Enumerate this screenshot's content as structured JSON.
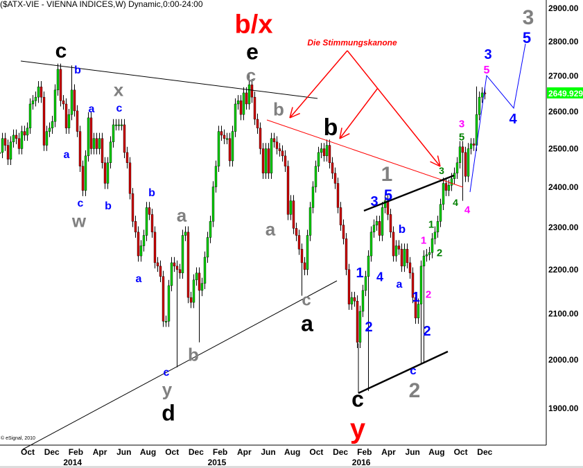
{
  "title": "($ATX-VIE - VIENNA INDICES,W) Dynamic,0:00-24:00",
  "copyright": "© eSignal, 2010",
  "colors": {
    "up": "#00cc00",
    "down": "#cc0000",
    "wick": "#000000",
    "last_price_bg": "#00ff00",
    "annotation_red": "#ff0000",
    "wave_blue": "#0000ff",
    "wave_grey": "#808080",
    "wave_pink": "#ff00ff",
    "wave_green": "#008000"
  },
  "chart_data": {
    "type": "candlestick",
    "interval": "W",
    "yscale": "log",
    "ylim": [
      1830,
      2950
    ],
    "y_ticks": [
      "2900.00",
      "2800.00",
      "2700.00",
      "2600.00",
      "2500.00",
      "2400.00",
      "2300.00",
      "2200.00",
      "2100.00",
      "2000.00",
      "1900.00"
    ],
    "last_price": "2649.929",
    "x_ticks": [
      "Oct",
      "Dec",
      "Feb",
      "Apr",
      "Jun",
      "Aug",
      "Oct",
      "Dec",
      "Feb",
      "Apr",
      "Jun",
      "Aug",
      "Oct",
      "Dec",
      "Feb",
      "Apr",
      "Jun",
      "Aug",
      "Oct",
      "Dec"
    ],
    "x_years": [
      {
        "label": "2014",
        "tick": 2
      },
      {
        "label": "2015",
        "tick": 8
      },
      {
        "label": "2016",
        "tick": 14
      }
    ],
    "grid": false,
    "dates": [
      "2013-07-22",
      "2013-07-29",
      "2013-08-05",
      "2013-08-12",
      "2013-08-19",
      "2013-08-26",
      "2013-09-02",
      "2013-09-09",
      "2013-09-16",
      "2013-09-23",
      "2013-09-30",
      "2013-10-07",
      "2013-10-14",
      "2013-10-21",
      "2013-10-28",
      "2013-11-04",
      "2013-11-11",
      "2013-11-18",
      "2013-11-25",
      "2013-12-02",
      "2013-12-09",
      "2013-12-16",
      "2013-12-23",
      "2013-12-30",
      "2014-01-06",
      "2014-01-13",
      "2014-01-20",
      "2014-01-27",
      "2014-02-03",
      "2014-02-10",
      "2014-02-17",
      "2014-02-24",
      "2014-03-03",
      "2014-03-10",
      "2014-03-17",
      "2014-03-24",
      "2014-03-31",
      "2014-04-07",
      "2014-04-14",
      "2014-04-21",
      "2014-04-28",
      "2014-05-05",
      "2014-05-12",
      "2014-05-19",
      "2014-05-26",
      "2014-06-02",
      "2014-06-09",
      "2014-06-16",
      "2014-06-23",
      "2014-06-30",
      "2014-07-07",
      "2014-07-14",
      "2014-07-21",
      "2014-07-28",
      "2014-08-04",
      "2014-08-11",
      "2014-08-18",
      "2014-08-25",
      "2014-09-01",
      "2014-09-08",
      "2014-09-15",
      "2014-09-22",
      "2014-09-29",
      "2014-10-06",
      "2014-10-13",
      "2014-10-20",
      "2014-10-27",
      "2014-11-03",
      "2014-11-10",
      "2014-11-17",
      "2014-11-24",
      "2014-12-01",
      "2014-12-08",
      "2014-12-15",
      "2014-12-22",
      "2014-12-29",
      "2015-01-05",
      "2015-01-12",
      "2015-01-19",
      "2015-01-26",
      "2015-02-02",
      "2015-02-09",
      "2015-02-16",
      "2015-02-23",
      "2015-03-02",
      "2015-03-09",
      "2015-03-16",
      "2015-03-23",
      "2015-03-30",
      "2015-04-06",
      "2015-04-13",
      "2015-04-20",
      "2015-04-27",
      "2015-05-04",
      "2015-05-11",
      "2015-05-18",
      "2015-05-25",
      "2015-06-01",
      "2015-06-08",
      "2015-06-15",
      "2015-06-22",
      "2015-06-29",
      "2015-07-06",
      "2015-07-13",
      "2015-07-20",
      "2015-07-27",
      "2015-08-03",
      "2015-08-10",
      "2015-08-17",
      "2015-08-24",
      "2015-08-31",
      "2015-09-07",
      "2015-09-14",
      "2015-09-21",
      "2015-09-28",
      "2015-10-05",
      "2015-10-12",
      "2015-10-19",
      "2015-10-26",
      "2015-11-02",
      "2015-11-09",
      "2015-11-16",
      "2015-11-23",
      "2015-11-30",
      "2015-12-07",
      "2015-12-14",
      "2015-12-21",
      "2015-12-28",
      "2016-01-04",
      "2016-01-11",
      "2016-01-18",
      "2016-01-25",
      "2016-02-01",
      "2016-02-08",
      "2016-02-15",
      "2016-02-22",
      "2016-02-29",
      "2016-03-07",
      "2016-03-14",
      "2016-03-21",
      "2016-03-28",
      "2016-04-04",
      "2016-04-11",
      "2016-04-18",
      "2016-04-25",
      "2016-05-02",
      "2016-05-09",
      "2016-05-16",
      "2016-05-23",
      "2016-05-30",
      "2016-06-06",
      "2016-06-13",
      "2016-06-20",
      "2016-06-27",
      "2016-07-04",
      "2016-07-11",
      "2016-07-18",
      "2016-07-25",
      "2016-08-01",
      "2016-08-08",
      "2016-08-15",
      "2016-08-22",
      "2016-08-29",
      "2016-09-05",
      "2016-09-12",
      "2016-09-19",
      "2016-09-26",
      "2016-10-03",
      "2016-10-10",
      "2016-10-17",
      "2016-10-24",
      "2016-10-31",
      "2016-11-07",
      "2016-11-14",
      "2016-11-21",
      "2016-11-28"
    ],
    "close": [
      2490,
      2527,
      2509,
      2472,
      2518,
      2536,
      2527,
      2500,
      2546,
      2536,
      2555,
      2621,
      2630,
      2640,
      2669,
      2640,
      2509,
      2546,
      2555,
      2573,
      2660,
      2719,
      2630,
      2621,
      2555,
      2592,
      2660,
      2602,
      2546,
      2454,
      2392,
      2481,
      2583,
      2500,
      2527,
      2500,
      2527,
      2463,
      2410,
      2463,
      2518,
      2564,
      2564,
      2564,
      2564,
      2490,
      2463,
      2384,
      2315,
      2289,
      2232,
      2256,
      2281,
      2349,
      2332,
      2289,
      2216,
      2208,
      2184,
      2083,
      2083,
      2163,
      2216,
      2208,
      2200,
      2192,
      2281,
      2289,
      2136,
      2125,
      2176,
      2192,
      2152,
      2168,
      2229,
      2276,
      2315,
      2401,
      2454,
      2546,
      2536,
      2527,
      2527,
      2468,
      2546,
      2621,
      2630,
      2592,
      2652,
      2621,
      2675,
      2640,
      2579,
      2555,
      2500,
      2436,
      2500,
      2436,
      2527,
      2518,
      2500,
      2494,
      2481,
      2454,
      2332,
      2366,
      2298,
      2281,
      2248,
      2216,
      2200,
      2281,
      2349,
      2401,
      2454,
      2490,
      2500,
      2481,
      2509,
      2463,
      2436,
      2410,
      2349,
      2306,
      2273,
      2200,
      2121,
      2136,
      2128,
      2037,
      2105,
      2152,
      2184,
      2232,
      2289,
      2306,
      2315,
      2281,
      2349,
      2366,
      2332,
      2289,
      2232,
      2256,
      2248,
      2208,
      2248,
      2216,
      2192,
      2136,
      2090,
      2121,
      2208,
      2232,
      2235,
      2240,
      2273,
      2289,
      2315,
      2357,
      2410,
      2392,
      2405,
      2422,
      2436,
      2463,
      2505,
      2490,
      2428,
      2500,
      2513,
      2509,
      2592,
      2640,
      2652,
      2649.929
    ],
    "extremes": [
      {
        "date": "2014-01-20",
        "high": 2730
      },
      {
        "date": "2014-10-13",
        "low": 1984
      },
      {
        "date": "2014-12-08",
        "low": 2037
      },
      {
        "date": "2015-04-13",
        "high": 2705
      },
      {
        "date": "2015-08-24",
        "low": 2140
      },
      {
        "date": "2016-02-08",
        "low": 1935
      },
      {
        "date": "2016-06-20",
        "low": 1992
      },
      {
        "date": "2016-06-27",
        "low": 1995
      },
      {
        "date": "2016-10-03",
        "low": 2366
      },
      {
        "date": "2016-11-07",
        "high": 2670
      }
    ]
  },
  "annotations": [
    {
      "text": "c",
      "color": "#000000"
    },
    {
      "text": "b",
      "color": "#0000ff"
    },
    {
      "text": "a",
      "color": "#0000ff"
    },
    {
      "text": "a",
      "color": "#0000ff"
    },
    {
      "text": "x",
      "color": "#808080"
    },
    {
      "text": "c",
      "color": "#0000ff"
    },
    {
      "text": "c",
      "color": "#0000ff"
    },
    {
      "text": "w",
      "color": "#808080"
    },
    {
      "text": "b",
      "color": "#0000ff"
    },
    {
      "text": "b",
      "color": "#0000ff"
    },
    {
      "text": "a",
      "color": "#0000ff"
    },
    {
      "text": "a",
      "color": "#808080"
    },
    {
      "text": "c",
      "color": "#0000ff"
    },
    {
      "text": "y",
      "color": "#808080"
    },
    {
      "text": "d",
      "color": "#000000"
    },
    {
      "text": "b",
      "color": "#808080"
    },
    {
      "text": "b/x",
      "color": "#ff0000"
    },
    {
      "text": "e",
      "color": "#000000"
    },
    {
      "text": "c",
      "color": "#808080"
    },
    {
      "text": "b",
      "color": "#808080"
    },
    {
      "text": "a",
      "color": "#808080"
    },
    {
      "text": "Die Stimmungskanone",
      "color": "#ff0000"
    },
    {
      "text": "b",
      "color": "#000000"
    },
    {
      "text": "c",
      "color": "#808080"
    },
    {
      "text": "a",
      "color": "#000000"
    },
    {
      "text": "1",
      "color": "#808080"
    },
    {
      "text": "3",
      "color": "#0000ff"
    },
    {
      "text": "5",
      "color": "#0000ff"
    },
    {
      "text": "b",
      "color": "#0000ff"
    },
    {
      "text": "1",
      "color": "#0000ff"
    },
    {
      "text": "4",
      "color": "#0000ff"
    },
    {
      "text": "a",
      "color": "#0000ff"
    },
    {
      "text": "2",
      "color": "#0000ff"
    },
    {
      "text": "c",
      "color": "#000000"
    },
    {
      "text": "y",
      "color": "#ff0000"
    },
    {
      "text": "1",
      "color": "#0000ff"
    },
    {
      "text": "2",
      "color": "#0000ff"
    },
    {
      "text": "2",
      "color": "#ff00ff"
    },
    {
      "text": "1",
      "color": "#ff00ff"
    },
    {
      "text": "2",
      "color": "#008000"
    },
    {
      "text": "1",
      "color": "#008000"
    },
    {
      "text": "c",
      "color": "#0000ff"
    },
    {
      "text": "2",
      "color": "#808080"
    },
    {
      "text": "3",
      "color": "#008000"
    },
    {
      "text": "4",
      "color": "#008000"
    },
    {
      "text": "4",
      "color": "#ff00ff"
    },
    {
      "text": "5",
      "color": "#008000"
    },
    {
      "text": "3",
      "color": "#ff00ff"
    },
    {
      "text": "3",
      "color": "#0000ff"
    },
    {
      "text": "5",
      "color": "#ff00ff"
    },
    {
      "text": "4",
      "color": "#0000ff"
    },
    {
      "text": "3",
      "color": "#808080"
    },
    {
      "text": "5",
      "color": "#0000ff"
    }
  ]
}
